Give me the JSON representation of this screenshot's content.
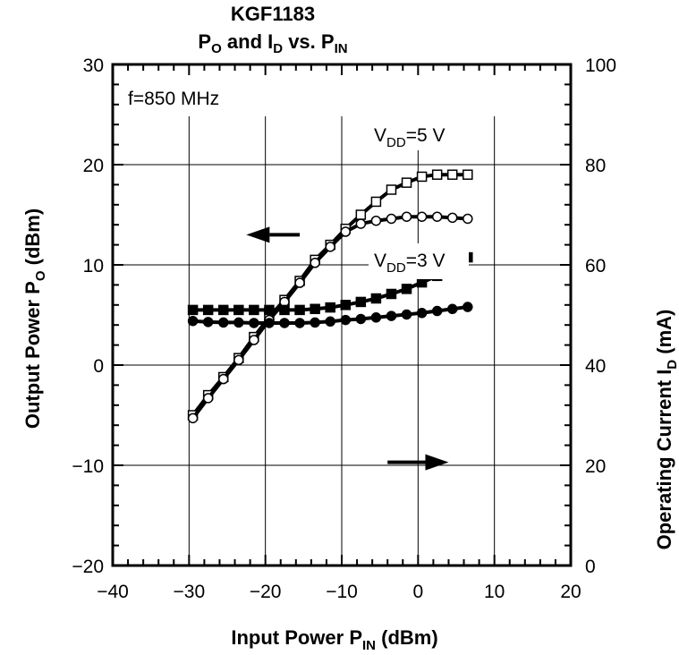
{
  "chart_data": {
    "type": "line",
    "title": "KGF1183",
    "subtitle": {
      "p": "P",
      "p_sub": "O",
      "mid": " and I",
      "i_sub": "D",
      "vs": " vs. P",
      "in_sub": "IN"
    },
    "xlabel": {
      "main": "Input Power  P",
      "sub": "IN",
      "unit": "  (dBm)"
    },
    "ylabel_left": {
      "main": "Output Power  P",
      "sub": "O",
      "unit": "  (dBm)"
    },
    "ylabel_right": {
      "main": "Operating Current  I",
      "sub": "D",
      "unit": "  (mA)"
    },
    "xlim": [
      -40,
      20
    ],
    "ylim_left": [
      -20,
      30
    ],
    "ylim_right": [
      0,
      100
    ],
    "x_ticks": [
      "-40",
      "-20",
      "-30",
      "-10",
      "0",
      "10",
      "20"
    ],
    "x_tick_values": [
      -40,
      -30,
      -20,
      -10,
      0,
      10,
      20
    ],
    "x_tick_labels": [
      "−40",
      "−30",
      "−20",
      "−10",
      "0",
      "10",
      "20"
    ],
    "y_left_tick_values": [
      -20,
      -10,
      0,
      10,
      20,
      30
    ],
    "y_left_tick_labels": [
      "−20",
      "−10",
      "0",
      "10",
      "20",
      "30"
    ],
    "y_right_tick_values": [
      0,
      20,
      40,
      60,
      80,
      100
    ],
    "y_right_tick_labels": [
      "0",
      "20",
      "40",
      "60",
      "80",
      "100"
    ],
    "grid": true,
    "annotations": {
      "freq": "f=850 MHz",
      "vdd5": {
        "main": "V",
        "sub": "DD",
        "val": "=5 V"
      },
      "vdd3": {
        "main": "V",
        "sub": "DD",
        "val": "=3 V"
      }
    },
    "x": [
      -29.5,
      -27.5,
      -25.5,
      -23.5,
      -21.5,
      -19.5,
      -17.5,
      -15.5,
      -13.5,
      -11.5,
      -9.5,
      -7.5,
      -5.5,
      -3.5,
      -1.5,
      0.5,
      2.5,
      4.5,
      6.5
    ],
    "series": [
      {
        "axis": "left",
        "marker": "open-square",
        "values": [
          -5.0,
          -3.0,
          -1.2,
          0.7,
          2.8,
          4.8,
          6.5,
          8.4,
          10.5,
          12.0,
          13.6,
          15.0,
          16.3,
          17.5,
          18.2,
          18.8,
          19.0,
          19.0,
          19.0
        ]
      },
      {
        "axis": "left",
        "marker": "open-circle",
        "values": [
          -5.3,
          -3.3,
          -1.4,
          0.5,
          2.5,
          4.5,
          6.3,
          8.2,
          10.2,
          11.8,
          13.3,
          14.1,
          14.4,
          14.6,
          14.8,
          14.8,
          14.8,
          14.7,
          14.6
        ]
      },
      {
        "axis": "right",
        "marker": "filled-square",
        "values": [
          51.0,
          51.0,
          51.0,
          51.0,
          51.0,
          51.0,
          51.0,
          51.0,
          51.2,
          51.5,
          52.0,
          52.6,
          53.3,
          54.2,
          55.2,
          56.5,
          57.8,
          59.5,
          61.5
        ]
      },
      {
        "axis": "right",
        "marker": "filled-circle",
        "values": [
          48.8,
          48.6,
          48.5,
          48.5,
          48.4,
          48.4,
          48.4,
          48.4,
          48.5,
          48.7,
          49.0,
          49.2,
          49.5,
          49.8,
          50.1,
          50.4,
          50.8,
          51.2,
          51.6
        ]
      }
    ],
    "arrows": [
      {
        "direction": "left",
        "x_from": -15.5,
        "x_to": -22.5,
        "y_left": 13.0
      },
      {
        "direction": "right",
        "x_from": -4.0,
        "x_to": 4.0,
        "y_left": -9.7
      }
    ]
  }
}
